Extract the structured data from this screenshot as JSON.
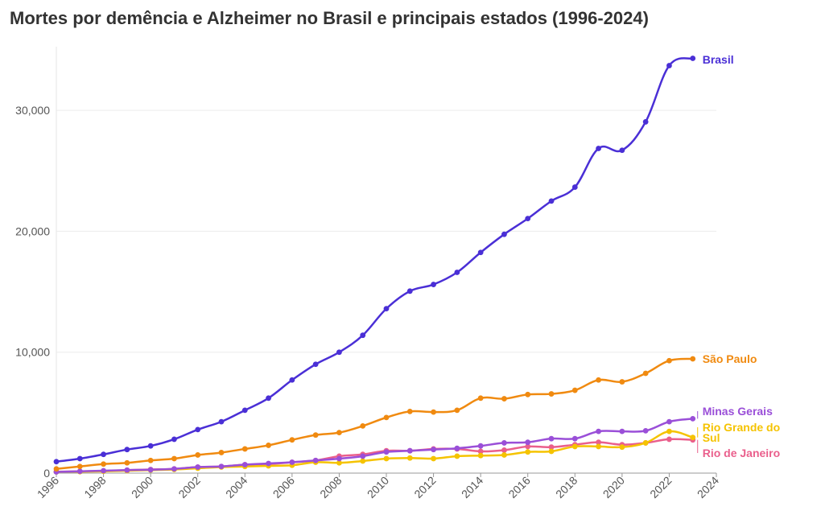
{
  "title": "Mortes por demência e Alzheimer no Brasil e principais estados (1996-2024)",
  "chart_data": {
    "type": "line",
    "title": "Mortes por demência e Alzheimer no Brasil e principais estados (1996-2024)",
    "xlabel": "",
    "ylabel": "",
    "xlim": [
      1996,
      2024
    ],
    "ylim": [
      0,
      35000
    ],
    "x_ticks": [
      "1996",
      "1998",
      "2000",
      "2002",
      "2004",
      "2006",
      "2008",
      "2010",
      "2012",
      "2014",
      "2016",
      "2018",
      "2020",
      "2022",
      "2024"
    ],
    "y_ticks": [
      "0",
      "10,000",
      "20,000",
      "30,000"
    ],
    "grid": "horizontal",
    "legend": "end-of-line labels",
    "x": [
      1996,
      1997,
      1998,
      1999,
      2000,
      2001,
      2002,
      2003,
      2004,
      2005,
      2006,
      2007,
      2008,
      2009,
      2010,
      2011,
      2012,
      2013,
      2014,
      2015,
      2016,
      2017,
      2018,
      2019,
      2020,
      2021,
      2022,
      2023
    ],
    "series": [
      {
        "name": "Brasil",
        "color": "#4a2fd6",
        "values": [
          950,
          1200,
          1550,
          1950,
          2250,
          2800,
          3600,
          4250,
          5200,
          6200,
          7700,
          9000,
          10000,
          11400,
          13600,
          15050,
          15600,
          16600,
          18250,
          19750,
          21050,
          22500,
          23650,
          26850,
          26700,
          29050,
          33700,
          34300
        ]
      },
      {
        "name": "São Paulo",
        "color": "#f08a10",
        "values": [
          350,
          550,
          750,
          850,
          1050,
          1200,
          1500,
          1700,
          2000,
          2300,
          2750,
          3150,
          3350,
          3900,
          4600,
          5100,
          5050,
          5200,
          6200,
          6150,
          6500,
          6550,
          6850,
          7700,
          7550,
          8250,
          9300,
          9450
        ]
      },
      {
        "name": "Minas Gerais",
        "color": "#9a4fd8",
        "values": [
          100,
          150,
          200,
          250,
          280,
          350,
          500,
          550,
          700,
          800,
          900,
          1050,
          1200,
          1400,
          1750,
          1850,
          1950,
          2050,
          2250,
          2500,
          2550,
          2850,
          2850,
          3450,
          3450,
          3500,
          4250,
          4500
        ]
      },
      {
        "name": "Rio Grande do Sul",
        "color": "#f5c300",
        "values": [
          100,
          120,
          150,
          200,
          250,
          300,
          400,
          500,
          550,
          600,
          650,
          900,
          850,
          1000,
          1200,
          1250,
          1200,
          1400,
          1450,
          1500,
          1750,
          1800,
          2200,
          2200,
          2150,
          2500,
          3450,
          2950
        ]
      },
      {
        "name": "Rio de Janeiro",
        "color": "#ea5f8c",
        "values": [
          120,
          150,
          180,
          250,
          300,
          350,
          500,
          550,
          700,
          750,
          900,
          1050,
          1400,
          1550,
          1850,
          1850,
          2000,
          2000,
          1800,
          1900,
          2200,
          2150,
          2350,
          2550,
          2350,
          2500,
          2800,
          2750
        ]
      }
    ]
  }
}
